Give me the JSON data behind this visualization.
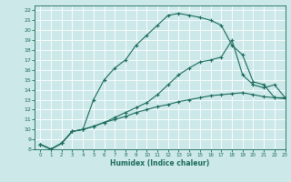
{
  "xlabel": "Humidex (Indice chaleur)",
  "ylabel": "",
  "bg_color": "#cce8e8",
  "line_color": "#1a6b5a",
  "grid_color": "#b8d8d8",
  "xlim": [
    -0.5,
    23
  ],
  "ylim": [
    8,
    22.5
  ],
  "x_ticks": [
    0,
    1,
    2,
    3,
    4,
    5,
    6,
    7,
    8,
    9,
    10,
    11,
    12,
    13,
    14,
    15,
    16,
    17,
    18,
    19,
    20,
    21,
    22,
    23
  ],
  "y_ticks": [
    8,
    9,
    10,
    11,
    12,
    13,
    14,
    15,
    16,
    17,
    18,
    19,
    20,
    21,
    22
  ],
  "line1_x": [
    0,
    1,
    2,
    3,
    4,
    5,
    6,
    7,
    8,
    9,
    10,
    11,
    12,
    13,
    14,
    15,
    16,
    17,
    18,
    19,
    20,
    21,
    22,
    23
  ],
  "line1_y": [
    8.5,
    8.0,
    8.6,
    9.8,
    10.0,
    13.0,
    15.0,
    16.2,
    17.0,
    18.5,
    19.5,
    20.5,
    21.5,
    21.7,
    21.5,
    21.3,
    21.0,
    20.5,
    18.5,
    17.5,
    14.8,
    14.5,
    13.2,
    13.2
  ],
  "line2_x": [
    0,
    1,
    2,
    3,
    4,
    5,
    6,
    7,
    8,
    9,
    10,
    11,
    12,
    13,
    14,
    15,
    16,
    17,
    18,
    19,
    20,
    21,
    22,
    23
  ],
  "line2_y": [
    8.5,
    8.0,
    8.6,
    9.8,
    10.0,
    10.3,
    10.7,
    11.0,
    11.3,
    11.7,
    12.0,
    12.3,
    12.5,
    12.8,
    13.0,
    13.2,
    13.4,
    13.5,
    13.6,
    13.7,
    13.5,
    13.3,
    13.2,
    13.1
  ],
  "line3_x": [
    0,
    1,
    2,
    3,
    4,
    5,
    6,
    7,
    8,
    9,
    10,
    11,
    12,
    13,
    14,
    15,
    16,
    17,
    18,
    19,
    20,
    21,
    22,
    23
  ],
  "line3_y": [
    8.5,
    8.0,
    8.6,
    9.8,
    10.0,
    10.3,
    10.7,
    11.2,
    11.7,
    12.2,
    12.7,
    13.5,
    14.5,
    15.5,
    16.2,
    16.8,
    17.0,
    17.3,
    19.0,
    15.5,
    14.5,
    14.2,
    14.5,
    13.2
  ]
}
